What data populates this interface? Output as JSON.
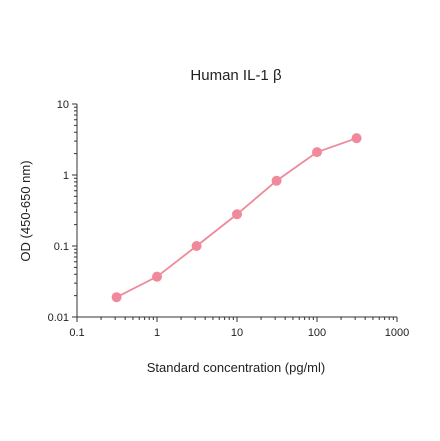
{
  "chart_data": {
    "type": "line",
    "title": "Human IL-1 β",
    "xlabel": "Standard concentration (pg/ml)",
    "ylabel": "OD (450-650 nm)",
    "xscale": "log",
    "yscale": "log",
    "xlim": [
      0.1,
      1000
    ],
    "ylim": [
      0.01,
      10
    ],
    "x_ticks": [
      "0.1",
      "1",
      "10",
      "100",
      "1000"
    ],
    "y_ticks": [
      "0.01",
      "0.1",
      "1",
      "10"
    ],
    "grid": false,
    "legend": "none",
    "color": "#f0899b",
    "series": [
      {
        "x": [
          0.3125,
          1,
          3.125,
          10,
          31.25,
          100,
          312.5
        ],
        "y": [
          0.019,
          0.037,
          0.1,
          0.28,
          0.83,
          2.1,
          3.3
        ]
      }
    ]
  }
}
